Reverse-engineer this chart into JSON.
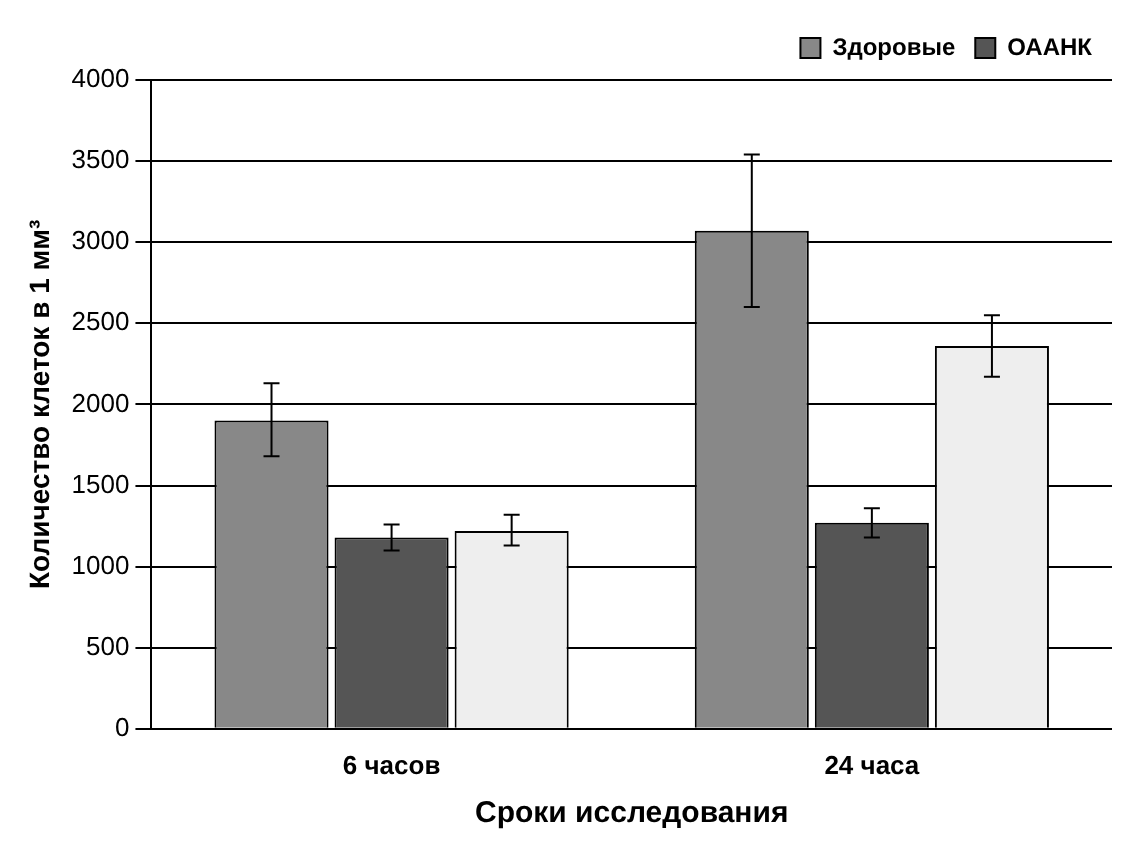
{
  "chart_data": {
    "type": "bar",
    "xlabel": "Сроки исследования",
    "ylabel": "Количество клеток в 1 мм³",
    "categories": [
      "6 часов",
      "24 часа"
    ],
    "series": [
      {
        "name": "Здоровые",
        "color": "#888888",
        "values": [
          1900,
          3070
        ],
        "errors": [
          [
            1680,
            2130
          ],
          [
            2600,
            3540
          ]
        ]
      },
      {
        "name": "ОААНК",
        "color": "#555555",
        "values": [
          1180,
          1270
        ],
        "errors": [
          [
            1100,
            1260
          ],
          [
            1180,
            1360
          ]
        ]
      },
      {
        "color": "#eeeeee",
        "values": [
          1220,
          2360
        ],
        "errors": [
          [
            1130,
            1320
          ],
          [
            2170,
            2550
          ]
        ]
      }
    ],
    "ylim": [
      0,
      4000
    ],
    "yticks": [
      0,
      500,
      1000,
      1500,
      2000,
      2500,
      3000,
      3500,
      4000
    ],
    "grid": "y",
    "legend": "top right"
  }
}
